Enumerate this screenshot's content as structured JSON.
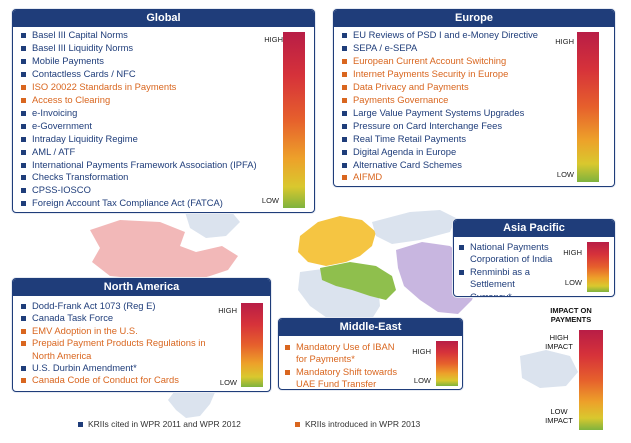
{
  "global": {
    "title": "Global",
    "high": "HIGH",
    "low": "LOW",
    "items": [
      {
        "label": "Basel III Capital Norms",
        "type": "cited"
      },
      {
        "label": "Basel III Liquidity Norms",
        "type": "cited"
      },
      {
        "label": "Mobile Payments",
        "type": "cited"
      },
      {
        "label": "Contactless Cards / NFC",
        "type": "cited"
      },
      {
        "label": "ISO 20022 Standards in Payments",
        "type": "new"
      },
      {
        "label": "Access to Clearing",
        "type": "new"
      },
      {
        "label": "e-Invoicing",
        "type": "cited"
      },
      {
        "label": "e-Government",
        "type": "cited"
      },
      {
        "label": "Intraday Liquidity Regime",
        "type": "cited"
      },
      {
        "label": "AML / ATF",
        "type": "cited"
      },
      {
        "label": "International Payments Framework Association (IPFA)",
        "type": "cited"
      },
      {
        "label": "Checks Transformation",
        "type": "cited"
      },
      {
        "label": "CPSS-IOSCO",
        "type": "cited"
      },
      {
        "label": "Foreign Account Tax Compliance Act (FATCA)",
        "type": "cited"
      }
    ]
  },
  "europe": {
    "title": "Europe",
    "high": "HIGH",
    "low": "LOW",
    "items": [
      {
        "label": "EU Reviews of PSD I and e-Money Directive",
        "type": "cited"
      },
      {
        "label": "SEPA / e-SEPA",
        "type": "cited"
      },
      {
        "label": "European Current Account Switching",
        "type": "new"
      },
      {
        "label": "Internet Payments Security in Europe",
        "type": "new"
      },
      {
        "label": "Data Privacy and Payments",
        "type": "new"
      },
      {
        "label": "Payments Governance",
        "type": "new"
      },
      {
        "label": "Large Value Payment Systems Upgrades",
        "type": "cited"
      },
      {
        "label": "Pressure on Card Interchange Fees",
        "type": "cited"
      },
      {
        "label": "Real Time Retail Payments",
        "type": "cited"
      },
      {
        "label": "Digital Agenda in Europe",
        "type": "cited"
      },
      {
        "label": "Alternative Card Schemes",
        "type": "cited"
      },
      {
        "label": "AIFMD",
        "type": "new"
      }
    ]
  },
  "asia_pacific": {
    "title": "Asia Pacific",
    "high": "HIGH",
    "low": "LOW",
    "items": [
      {
        "label": "National Payments Corporation of India",
        "type": "cited"
      },
      {
        "label": "Renminbi as a Settlement Currency*",
        "type": "cited"
      }
    ]
  },
  "north_america": {
    "title": "North America",
    "high": "HIGH",
    "low": "LOW",
    "items": [
      {
        "label": "Dodd-Frank Act 1073 (Reg E)",
        "type": "cited"
      },
      {
        "label": "Canada Task Force",
        "type": "cited"
      },
      {
        "label": "EMV Adoption in the U.S.",
        "type": "new"
      },
      {
        "label": "Prepaid Payment Products Regulations in North America",
        "type": "new"
      },
      {
        "label": "U.S. Durbin Amendment*",
        "type": "cited"
      },
      {
        "label": "Canada Code of Conduct for Cards",
        "type": "new"
      }
    ]
  },
  "middle_east": {
    "title": "Middle-East",
    "high": "HIGH",
    "low": "LOW",
    "items": [
      {
        "label": "Mandatory Use of IBAN for Payments*",
        "type": "new"
      },
      {
        "label": "Mandatory Shift towards UAE Fund Transfer System*",
        "type": "new"
      }
    ]
  },
  "impact_scale": {
    "title": "IMPACT ON PAYMENTS",
    "high": "HIGH IMPACT",
    "low": "LOW IMPACT"
  },
  "legend": {
    "cited": "KRIIs cited in WPR 2011 and WPR 2012",
    "new": "KRIIs introduced in WPR 2013"
  },
  "colors": {
    "cited": "#1f3d7a",
    "new": "#d9661f",
    "header": "#1f3d7a",
    "na_map": "#f2b8b8",
    "eu_map": "#f5c542",
    "me_map": "#8fbf4d",
    "asia_map": "#c8b6e0",
    "land": "#dbe3ee"
  }
}
